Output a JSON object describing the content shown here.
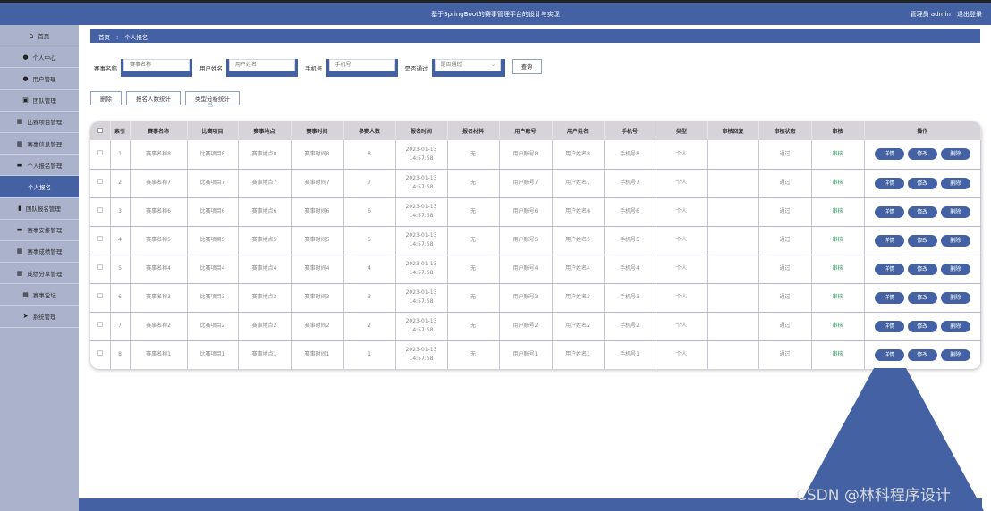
{
  "header": {
    "title": "基于SpringBoot的赛事管理平台的设计与实现",
    "user": "管理员 admin",
    "logout": "退出登录"
  },
  "sidebar": {
    "items": [
      {
        "label": "首页",
        "icon": "home-icon",
        "glyph": "⌂"
      },
      {
        "label": "个人中心",
        "icon": "user-icon",
        "glyph": "●"
      },
      {
        "label": "用户管理",
        "icon": "user-icon",
        "glyph": "●"
      },
      {
        "label": "团队管理",
        "icon": "checkbox-icon",
        "glyph": "▣"
      },
      {
        "label": "比赛项目管理",
        "icon": "grid-icon",
        "glyph": "▦"
      },
      {
        "label": "赛事信息管理",
        "icon": "grid-icon",
        "glyph": "▦"
      },
      {
        "label": "个人报名管理",
        "icon": "card-icon",
        "glyph": "▬"
      },
      {
        "label": "个人报名",
        "icon": "",
        "glyph": "",
        "active": true
      },
      {
        "label": "团队报名管理",
        "icon": "clipboard-icon",
        "glyph": "▮"
      },
      {
        "label": "赛事安排管理",
        "icon": "monitor-icon",
        "glyph": "▬"
      },
      {
        "label": "赛事成绩管理",
        "icon": "grid-icon",
        "glyph": "▦"
      },
      {
        "label": "成绩分享管理",
        "icon": "grid-icon",
        "glyph": "▦"
      },
      {
        "label": "赛事论坛",
        "icon": "grid-icon",
        "glyph": "▦"
      },
      {
        "label": "系统管理",
        "icon": "send-icon",
        "glyph": "➤"
      }
    ]
  },
  "breadcrumb": {
    "home": "首页",
    "sep": "⁝",
    "current": "个人报名"
  },
  "search": {
    "f1_label": "赛事名称",
    "f1_placeholder": "赛事名称",
    "f2_label": "用户姓名",
    "f2_placeholder": "用户姓名",
    "f3_label": "手机号",
    "f3_placeholder": "手机号",
    "f4_label": "是否通过",
    "f4_placeholder": "是否通过",
    "query": "查询"
  },
  "actions": {
    "delete": "删除",
    "count_stats": "报名人数统计",
    "type_stats": "类型分析统计"
  },
  "table": {
    "headers": [
      "索引",
      "赛事名称",
      "比赛项目",
      "赛事地点",
      "赛事时间",
      "参赛人数",
      "报名时间",
      "报名材料",
      "用户账号",
      "用户姓名",
      "手机号",
      "类型",
      "审核回复",
      "审核状态",
      "审核",
      "操作"
    ],
    "buttons": {
      "detail": "详情",
      "edit": "修改",
      "delete": "删除"
    },
    "rows": [
      {
        "idx": "1",
        "name": "赛事名称8",
        "item": "比赛项目8",
        "place": "赛事地点8",
        "time": "赛事时间8",
        "count": "8",
        "signup": "2023-01-13 14:57:58",
        "material": "无",
        "account": "用户账号8",
        "uname": "用户姓名8",
        "phone": "手机号8",
        "type": "个人",
        "reply": "",
        "status": "通过",
        "review": "审核"
      },
      {
        "idx": "2",
        "name": "赛事名称7",
        "item": "比赛项目7",
        "place": "赛事地点7",
        "time": "赛事时间7",
        "count": "7",
        "signup": "2023-01-13 14:57:58",
        "material": "无",
        "account": "用户账号7",
        "uname": "用户姓名7",
        "phone": "手机号7",
        "type": "个人",
        "reply": "",
        "status": "通过",
        "review": "审核"
      },
      {
        "idx": "3",
        "name": "赛事名称6",
        "item": "比赛项目6",
        "place": "赛事地点6",
        "time": "赛事时间6",
        "count": "6",
        "signup": "2023-01-13 14:57:58",
        "material": "无",
        "account": "用户账号6",
        "uname": "用户姓名6",
        "phone": "手机号6",
        "type": "个人",
        "reply": "",
        "status": "通过",
        "review": "审核"
      },
      {
        "idx": "4",
        "name": "赛事名称5",
        "item": "比赛项目5",
        "place": "赛事地点5",
        "time": "赛事时间5",
        "count": "5",
        "signup": "2023-01-13 14:57:58",
        "material": "无",
        "account": "用户账号5",
        "uname": "用户姓名5",
        "phone": "手机号5",
        "type": "个人",
        "reply": "",
        "status": "通过",
        "review": "审核"
      },
      {
        "idx": "5",
        "name": "赛事名称4",
        "item": "比赛项目4",
        "place": "赛事地点4",
        "time": "赛事时间4",
        "count": "4",
        "signup": "2023-01-13 14:57:58",
        "material": "无",
        "account": "用户账号4",
        "uname": "用户姓名4",
        "phone": "手机号4",
        "type": "个人",
        "reply": "",
        "status": "通过",
        "review": "审核"
      },
      {
        "idx": "6",
        "name": "赛事名称3",
        "item": "比赛项目3",
        "place": "赛事地点3",
        "time": "赛事时间3",
        "count": "3",
        "signup": "2023-01-13 14:57:58",
        "material": "无",
        "account": "用户账号3",
        "uname": "用户姓名3",
        "phone": "手机号3",
        "type": "个人",
        "reply": "",
        "status": "通过",
        "review": "审核"
      },
      {
        "idx": "7",
        "name": "赛事名称2",
        "item": "比赛项目2",
        "place": "赛事地点2",
        "time": "赛事时间2",
        "count": "2",
        "signup": "2023-01-13 14:57:58",
        "material": "无",
        "account": "用户账号2",
        "uname": "用户姓名2",
        "phone": "手机号2",
        "type": "个人",
        "reply": "",
        "status": "通过",
        "review": "审核"
      },
      {
        "idx": "8",
        "name": "赛事名称1",
        "item": "比赛项目1",
        "place": "赛事地点1",
        "time": "赛事时间1",
        "count": "1",
        "signup": "2023-01-13 14:57:58",
        "material": "无",
        "account": "用户账号1",
        "uname": "用户姓名1",
        "phone": "手机号1",
        "type": "个人",
        "reply": "",
        "status": "通过",
        "review": "审核"
      }
    ]
  },
  "watermark": "CSDN @林科程序设计",
  "colors": {
    "brand": "#4462a3",
    "sidebar": "#aab3cb",
    "review": "#2a9d5a"
  }
}
